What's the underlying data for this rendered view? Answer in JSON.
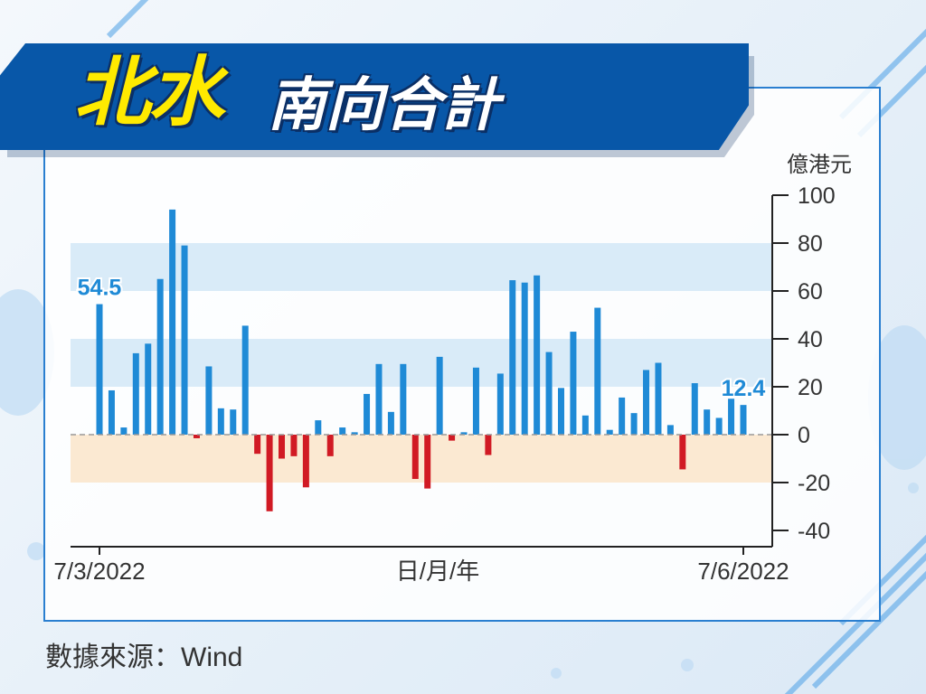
{
  "title": {
    "main": "北水",
    "sub": "南向合計"
  },
  "source": "數據來源：Wind",
  "colors": {
    "banner": "#0857a8",
    "title_main": "#ffea00",
    "positive_bar": "#1f8ad6",
    "negative_bar": "#d11a24",
    "callout": "#1f8ad6",
    "band_blue": "#d9ebf8",
    "band_orange": "#fbe9d2"
  },
  "chart_data": {
    "type": "bar",
    "unit_label": "億港元",
    "xlabel": "日/月/年",
    "x_tick_labels": [
      "7/3/2022",
      "7/6/2022"
    ],
    "first_date": "7/3/2022",
    "last_date": "7/6/2022",
    "ylim": [
      -40,
      100
    ],
    "y_ticks": [
      100,
      80,
      60,
      40,
      20,
      0,
      -20,
      -40
    ],
    "y_axis_position": "right",
    "grid": false,
    "legend": "none",
    "values": [
      54.5,
      18.5,
      3,
      34,
      38,
      65,
      94,
      79,
      -1.5,
      28.5,
      11,
      10.5,
      45.5,
      -8,
      -32,
      -10,
      -9,
      -22,
      6,
      -9,
      3,
      1,
      17,
      29.5,
      9.5,
      29.5,
      -18.5,
      -22.5,
      32.5,
      -2.5,
      1,
      28,
      -8.5,
      25.5,
      64.5,
      63.5,
      66.5,
      34.5,
      19.5,
      43,
      8,
      53,
      2,
      15.5,
      9,
      27,
      30,
      4,
      -14.5,
      21.5,
      10.5,
      7,
      15,
      12.4
    ],
    "callouts": [
      {
        "label": "54.5",
        "value": 54.5,
        "position": "first"
      },
      {
        "label": "12.4",
        "value": 12.4,
        "position": "last"
      }
    ]
  }
}
